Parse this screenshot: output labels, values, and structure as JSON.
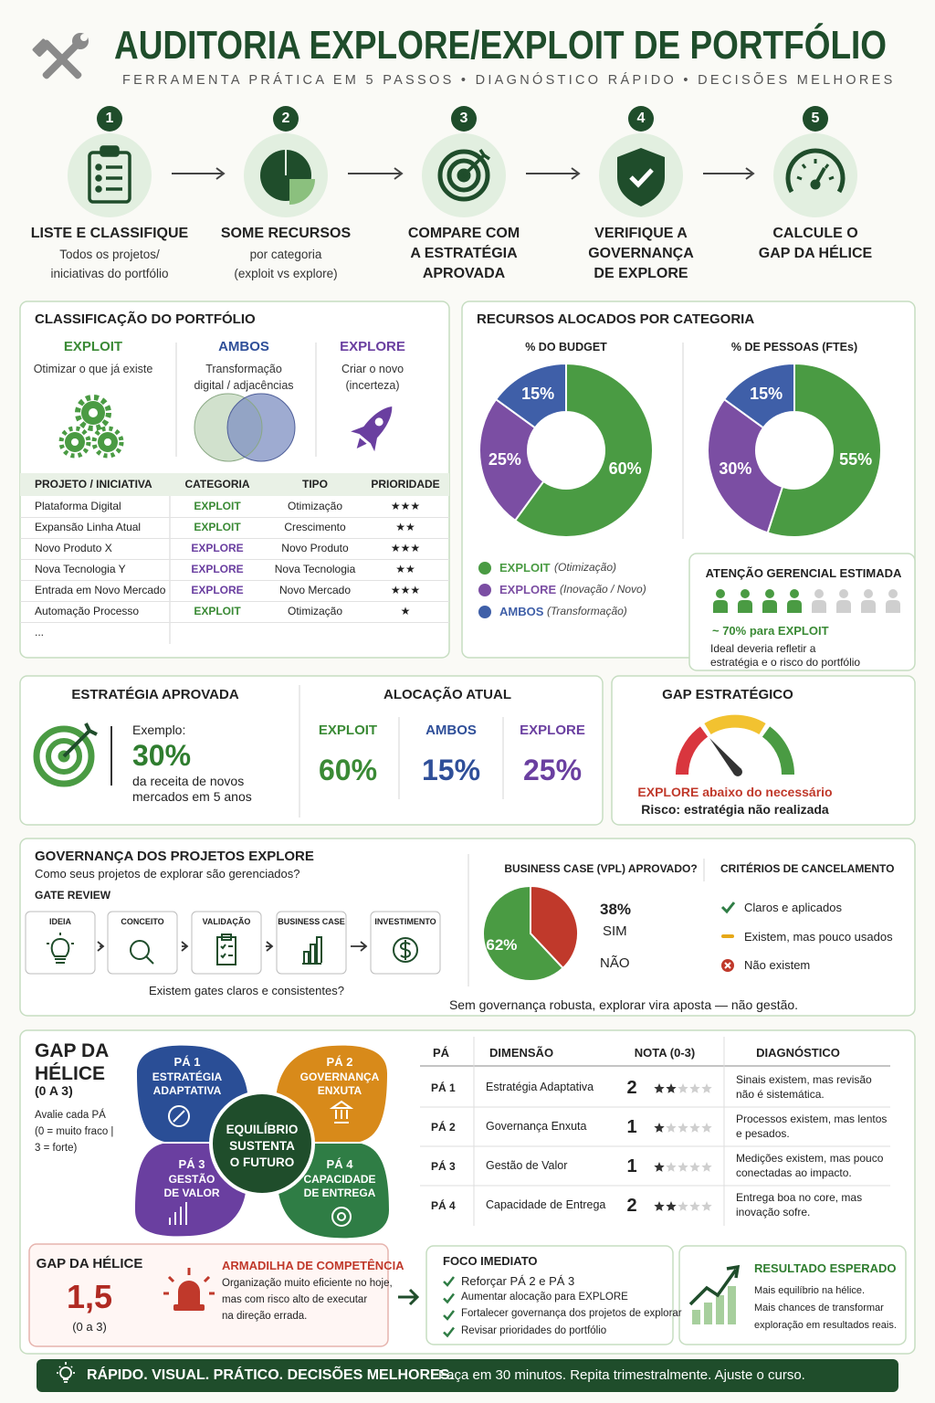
{
  "header": {
    "title": "AUDITORIA EXPLORE/EXPLOIT DE PORTFÓLIO",
    "subtitle": "FERRAMENTA PRÁTICA EM 5 PASSOS • DIAGNÓSTICO RÁPIDO • DECISÕES MELHORES"
  },
  "steps": [
    {
      "number": 1,
      "title_lines": [
        "LISTE E CLASSIFIQUE"
      ],
      "text_lines": [
        "Todos os projetos/",
        "iniciativas do portfólio"
      ]
    },
    {
      "number": 2,
      "title_lines": [
        "SOME RECURSOS"
      ],
      "text_lines": [
        "por categoria",
        "(exploit vs explore)"
      ]
    },
    {
      "number": 3,
      "title_lines": [
        "COMPARE COM",
        "A ESTRATÉGIA",
        "APROVADA"
      ]
    },
    {
      "number": 4,
      "title_lines": [
        "VERIFIQUE A",
        "GOVERNANÇA",
        "DE EXPLORE"
      ]
    },
    {
      "number": 5,
      "title_lines": [
        "CALCULE O",
        "GAP DA HÉLICE"
      ]
    }
  ],
  "classification": {
    "title": "CLASSIFICAÇÃO DO PORTFÓLIO",
    "types": [
      {
        "name": "EXPLOIT",
        "color": "#3a8a35",
        "lines": [
          "Otimizar o que já existe"
        ]
      },
      {
        "name": "AMBOS",
        "color": "#2f4f99",
        "lines": [
          "Transformação",
          "digital / adjacências"
        ]
      },
      {
        "name": "EXPLORE",
        "color": "#6a3fa0",
        "lines": [
          "Criar o novo",
          "(incerteza)"
        ]
      }
    ],
    "table": {
      "header": [
        "PROJETO / INICIATIVA",
        "CATEGORIA",
        "TIPO",
        "PRIORIDADE"
      ],
      "rows": [
        [
          "Plataforma Digital",
          "EXPLOIT",
          "Otimização",
          "★★★"
        ],
        [
          "Expansão Linha Atual",
          "EXPLOIT",
          "Crescimento",
          "★★"
        ],
        [
          "Novo Produto X",
          "EXPLORE",
          "Novo Produto",
          "★★★"
        ],
        [
          "Nova Tecnologia Y",
          "EXPLORE",
          "Nova Tecnologia",
          "★★"
        ],
        [
          "Entrada em Novo Mercado",
          "EXPLORE",
          "Novo Mercado",
          "★★★"
        ],
        [
          "Automação Processo",
          "EXPLOIT",
          "Otimização",
          "★"
        ],
        [
          "..."
        ]
      ]
    }
  },
  "resources": {
    "title": "RECURSOS ALOCADOS POR CATEGORIA",
    "legend": [
      {
        "name": "EXPLOIT",
        "note": "(Otimização)",
        "color": "#4a9b43"
      },
      {
        "name": "EXPLORE",
        "note": "(Inovação / Novo)",
        "color": "#7b4ea3"
      },
      {
        "name": "AMBOS",
        "note": "(Transformação)",
        "color": "#3f5fa8"
      }
    ],
    "charts": [
      {
        "type": "donut",
        "title": "% DO BUDGET",
        "values": [
          60,
          25,
          15
        ],
        "value_labels": [
          "60%",
          "25%",
          "15%"
        ]
      },
      {
        "type": "donut",
        "title": "% DE PESSOAS (FTEs)",
        "values": [
          55,
          30,
          15
        ],
        "value_labels": [
          "55%",
          "30%",
          "15%"
        ]
      }
    ],
    "attention": {
      "title": "ATENÇÃO GERENCIAL ESTIMADA",
      "highlight": "~ 70% para EXPLOIT",
      "lines": [
        "Ideal deveria refletir a",
        "estratégia e o risco do portfólio"
      ]
    }
  },
  "strategy": {
    "title": "ESTRATÉGIA APROVADA",
    "label": "Exemplo:",
    "value": "30%",
    "lines": [
      "da receita de novos",
      "mercados em 5 anos"
    ]
  },
  "allocation": {
    "title": "ALOCAÇÃO ATUAL",
    "items": [
      {
        "name": "EXPLOIT",
        "value": "60%"
      },
      {
        "name": "AMBOS",
        "value": "15%"
      },
      {
        "name": "EXPLORE",
        "value": "25%"
      }
    ]
  },
  "gap": {
    "title": "GAP ESTRATÉGICO",
    "alert": "EXPLORE abaixo do necessário",
    "risk": "Risco: estratégia não realizada"
  },
  "governance": {
    "title": "GOVERNANÇA DOS PROJETOS EXPLORE",
    "subtitle": "Como seus projetos de explorar são gerenciados?",
    "gate_title": "GATE REVIEW",
    "gates": [
      "IDEIA",
      "CONCEITO",
      "VALIDAÇÃO",
      "BUSINESS CASE",
      "INVESTIMENTO"
    ],
    "question": "Existem gates claros e consistentes?",
    "business_case": {
      "type": "pie",
      "title": "BUSINESS CASE (VPL) APROVADO?",
      "values": [
        38,
        62
      ],
      "value_labels": [
        "38%",
        "62%"
      ],
      "colors": [
        "#c0392b",
        "#4a9b43"
      ],
      "answers": [
        "SIM",
        "NÃO"
      ]
    },
    "criteria": {
      "title": "CRITÉRIOS DE CANCELAMENTO",
      "items": [
        "Claros e aplicados",
        "Existem, mas pouco usados",
        "Não existem"
      ]
    },
    "footnote": "Sem governança robusta, explorar vira aposta — não gestão."
  },
  "helix": {
    "title_lines": [
      "GAP DA",
      "HÉLICE"
    ],
    "range": "(0 A 3)",
    "instructions": [
      "Avalie cada PÁ",
      "(0 = muito fraco |",
      "3 = forte)"
    ],
    "center": [
      "EQUILÍBRIO",
      "SUSTENTA",
      "O FUTURO"
    ],
    "blades": [
      {
        "name": "PÁ 1",
        "lines": [
          "ESTRATÉGIA",
          "ADAPTATIVA"
        ]
      },
      {
        "name": "PÁ 2",
        "lines": [
          "GOVERNANÇA",
          "ENXUTA"
        ]
      },
      {
        "name": "PÁ 3",
        "lines": [
          "GESTÃO",
          "DE VALOR"
        ]
      },
      {
        "name": "PÁ 4",
        "lines": [
          "CAPACIDADE",
          "DE ENTREGA"
        ]
      }
    ],
    "table": {
      "header": [
        "PÁ",
        "DIMENSÃO",
        "NOTA (0-3)",
        "DIAGNÓSTICO"
      ],
      "rows": [
        {
          "pa": "PÁ 1",
          "dimension": "Estratégia Adaptativa",
          "score": 2,
          "diagnosis": [
            "Sinais existem, mas revisão",
            "não é sistemática."
          ]
        },
        {
          "pa": "PÁ 2",
          "dimension": "Governança Enxuta",
          "score": 1,
          "diagnosis": [
            "Processos existem, mas lentos",
            "e pesados."
          ]
        },
        {
          "pa": "PÁ 3",
          "dimension": "Gestão de Valor",
          "score": 1,
          "diagnosis": [
            "Medições existem, mas pouco",
            "conectadas ao impacto."
          ]
        },
        {
          "pa": "PÁ 4",
          "dimension": "Capacidade de Entrega",
          "score": 2,
          "diagnosis": [
            "Entrega boa no core, mas",
            "inovação sofre."
          ]
        }
      ]
    }
  },
  "summary": {
    "title": "GAP DA HÉLICE",
    "value": "1,5",
    "range": "(0 a 3)",
    "trap_title": "ARMADILHA DE COMPETÊNCIA",
    "trap_lines": [
      "Organização muito eficiente no hoje,",
      "mas com risco alto de executar",
      "na direção errada."
    ],
    "focus_title": "FOCO IMEDIATO",
    "focus_items": [
      "Reforçar PÁ 2 e PÁ 3",
      "Aumentar alocação para EXPLORE",
      "Fortalecer governança dos projetos de explorar",
      "Revisar prioridades do portfólio"
    ],
    "result_title": "RESULTADO ESPERADO",
    "result_lines": [
      "Mais equilíbrio na hélice.",
      "Mais chances de transformar",
      "exploração em resultados reais."
    ]
  },
  "footer": {
    "headline": "RÁPIDO. VISUAL. PRÁTICO. DECISÕES MELHORES.",
    "text": "Faça em 30 minutos. Repita trimestralmente. Ajuste o curso."
  }
}
